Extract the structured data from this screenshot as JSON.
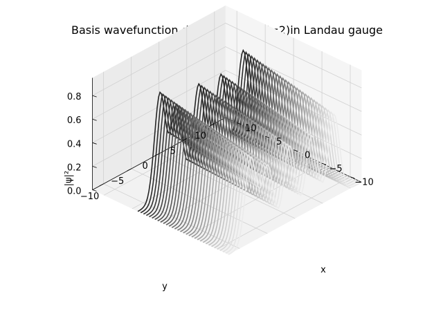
{
  "chart_data": {
    "type": "surface3d",
    "title": "Basis wavefunction density of LLL (i=2)in Landau gauge",
    "xlabel": "x",
    "ylabel": "y",
    "zlabel": "|ψ|²",
    "xlim": [
      -12,
      12
    ],
    "ylim": [
      -12,
      12
    ],
    "zlim": [
      0,
      0.95
    ],
    "x_ticks": [
      -10,
      -5,
      0,
      5,
      10
    ],
    "x_tick_labels": [
      "−10",
      "−5",
      "0",
      "5",
      "10"
    ],
    "y_ticks": [
      -10,
      -5,
      0,
      5,
      10
    ],
    "y_tick_labels": [
      "−10",
      "−5",
      "0",
      "5",
      "10"
    ],
    "z_ticks": [
      0.0,
      0.2,
      0.4,
      0.6,
      0.8
    ],
    "z_tick_labels": [
      "0.0",
      "0.2",
      "0.4",
      "0.6",
      "0.8"
    ],
    "grid": true,
    "colormap": "greys",
    "peak_centers_y": [
      -8,
      -5,
      -1,
      3,
      7
    ],
    "peak_amplitudes": [
      0.9,
      0.72,
      0.8,
      0.78,
      0.88
    ],
    "peak_width": 1.0,
    "x_samples": [
      -12,
      -11.5,
      -11,
      -10.5,
      -10,
      -9.5,
      -9,
      -8.5,
      -8,
      -7.5,
      -7,
      -6.5,
      -6,
      -5.5,
      -5,
      -4.5,
      -4,
      -3.5,
      -3,
      -2.5,
      -2,
      -1.5,
      -1,
      -0.5,
      0,
      0.5,
      1,
      1.5,
      2,
      2.5,
      3,
      3.5,
      4
    ]
  }
}
